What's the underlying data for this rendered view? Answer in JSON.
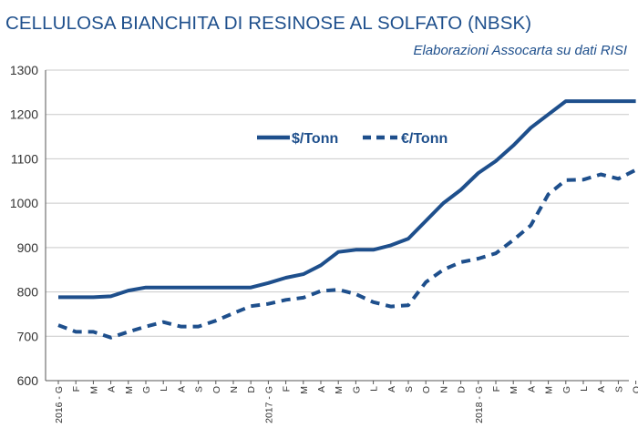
{
  "title": "CELLULOSA BIANCHITA DI RESINOSE AL SOLFATO (NBSK)",
  "subtitle": "Elaborazioni Assocarta su dati RISI",
  "colors": {
    "series": "#1e4f8c",
    "grid": "#c9c9c9",
    "axis": "#555555"
  },
  "chart_data": {
    "type": "line",
    "title": "CELLULOSA BIANCHITA DI RESINOSE AL SOLFATO (NBSK)",
    "subtitle": "Elaborazioni Assocarta su dati RISI",
    "x": [
      "2016 - G",
      "F",
      "M",
      "A",
      "M",
      "G",
      "L",
      "A",
      "S",
      "O",
      "N",
      "D",
      "2017 - G",
      "F",
      "M",
      "A",
      "M",
      "G",
      "L",
      "A",
      "S",
      "O",
      "N",
      "D",
      "2018 - G",
      "F",
      "M",
      "A",
      "M",
      "G",
      "L",
      "A",
      "S",
      "O"
    ],
    "ylim": [
      600,
      1300
    ],
    "yticks": [
      600,
      700,
      800,
      900,
      1000,
      1100,
      1200,
      1300
    ],
    "grid": true,
    "legend_position": "top-center",
    "series": [
      {
        "name": "$/Tonn",
        "style": "solid",
        "values": [
          788,
          788,
          788,
          790,
          803,
          810,
          810,
          810,
          810,
          810,
          810,
          810,
          820,
          832,
          840,
          860,
          890,
          895,
          895,
          905,
          920,
          960,
          1000,
          1030,
          1068,
          1095,
          1130,
          1170,
          1200,
          1230,
          1230,
          1230,
          1230,
          1230
        ]
      },
      {
        "name": "€/Tonn",
        "style": "dashed",
        "values": [
          725,
          710,
          710,
          697,
          710,
          722,
          732,
          722,
          722,
          735,
          752,
          768,
          773,
          782,
          787,
          802,
          805,
          795,
          777,
          767,
          770,
          822,
          850,
          867,
          875,
          887,
          917,
          950,
          1020,
          1052,
          1053,
          1065,
          1055,
          1075
        ]
      }
    ]
  }
}
